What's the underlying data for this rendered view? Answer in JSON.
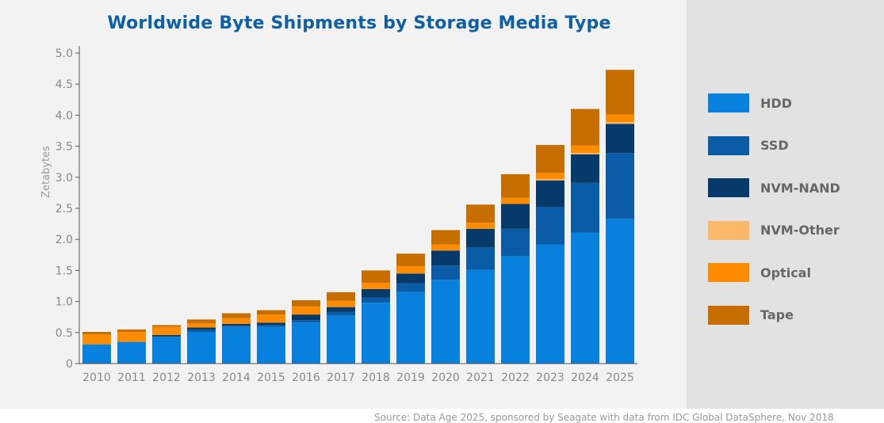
{
  "chart_data": {
    "type": "bar",
    "stacked": true,
    "title": "Worldwide Byte Shipments by Storage Media Type",
    "ylabel": "Zetabytes",
    "xlabel": "",
    "ylim": [
      0,
      5
    ],
    "yticks": [
      "0",
      "0.5",
      "1.0",
      "1.5",
      "2.0",
      "2.5",
      "3.0",
      "3.5",
      "4.0",
      "4.5",
      "5.0"
    ],
    "ytick_values": [
      0,
      0.5,
      1.0,
      1.5,
      2.0,
      2.5,
      3.0,
      3.5,
      4.0,
      4.5,
      5.0
    ],
    "grid": false,
    "legend_position": "right",
    "categories": [
      "2010",
      "2011",
      "2012",
      "2013",
      "2014",
      "2015",
      "2016",
      "2017",
      "2018",
      "2019",
      "2020",
      "2021",
      "2022",
      "2023",
      "2024",
      "2025"
    ],
    "series": [
      {
        "name": "HDD",
        "color": "#0880dd",
        "values": [
          0.31,
          0.35,
          0.43,
          0.51,
          0.59,
          0.59,
          0.66,
          0.77,
          0.98,
          1.15,
          1.35,
          1.51,
          1.73,
          1.92,
          2.11,
          2.33
        ]
      },
      {
        "name": "SSD",
        "color": "#0a5ca7",
        "values": [
          0.0,
          0.0,
          0.01,
          0.03,
          0.02,
          0.03,
          0.04,
          0.06,
          0.08,
          0.14,
          0.23,
          0.36,
          0.44,
          0.6,
          0.8,
          1.06
        ]
      },
      {
        "name": "NVM-NAND",
        "color": "#063a6a",
        "values": [
          0.0,
          0.0,
          0.02,
          0.04,
          0.03,
          0.04,
          0.09,
          0.08,
          0.14,
          0.16,
          0.24,
          0.3,
          0.4,
          0.43,
          0.46,
          0.47
        ]
      },
      {
        "name": "NVM-Other",
        "color": "#fbb868",
        "values": [
          0.0,
          0.0,
          0.0,
          0.0,
          0.0,
          0.0,
          0.0,
          0.0,
          0.0,
          0.0,
          0.0,
          0.0,
          0.0,
          0.02,
          0.02,
          0.03
        ]
      },
      {
        "name": "Optical",
        "color": "#ff8c00",
        "values": [
          0.16,
          0.16,
          0.13,
          0.07,
          0.09,
          0.13,
          0.13,
          0.1,
          0.1,
          0.12,
          0.1,
          0.1,
          0.1,
          0.1,
          0.12,
          0.12
        ]
      },
      {
        "name": "Tape",
        "color": "#c66e00",
        "values": [
          0.04,
          0.04,
          0.03,
          0.06,
          0.08,
          0.07,
          0.1,
          0.14,
          0.2,
          0.2,
          0.23,
          0.29,
          0.38,
          0.45,
          0.59,
          0.72
        ]
      }
    ]
  },
  "source": "Source: Data Age 2025, sponsored by Seagate with data from IDC Global DataSphere, Nov 2018"
}
